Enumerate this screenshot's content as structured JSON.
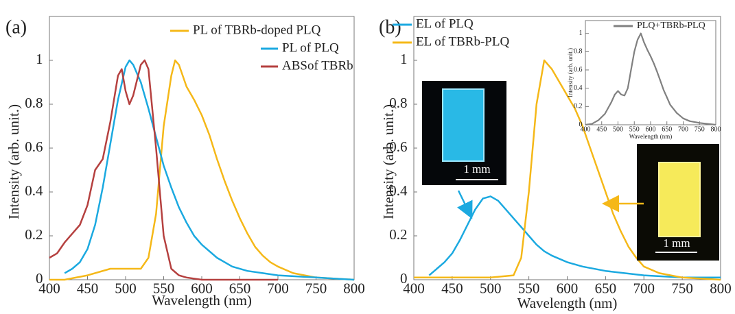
{
  "chart_data": [
    {
      "type": "line",
      "panel_label": "(a)",
      "x_label": "Wavelength (nm)",
      "y_label": "Intensity (arb. unit.)",
      "xlim": [
        400,
        800
      ],
      "xticks": [
        400,
        450,
        500,
        550,
        600,
        650,
        700,
        750,
        800
      ],
      "ylim": [
        0,
        1.2
      ],
      "yticks": [
        0,
        0.2,
        0.4,
        0.6,
        0.8,
        1
      ],
      "series": [
        {
          "name": "PL of TBRb-doped PLQ",
          "color": "#f5b818",
          "x": [
            400,
            420,
            450,
            480,
            500,
            520,
            530,
            540,
            550,
            560,
            565,
            570,
            580,
            590,
            600,
            610,
            620,
            630,
            640,
            650,
            660,
            670,
            680,
            690,
            700,
            720,
            750,
            800
          ],
          "values": [
            0.0,
            0.0,
            0.02,
            0.05,
            0.05,
            0.05,
            0.1,
            0.3,
            0.7,
            0.93,
            1.0,
            0.98,
            0.88,
            0.82,
            0.75,
            0.66,
            0.55,
            0.45,
            0.36,
            0.28,
            0.21,
            0.15,
            0.11,
            0.08,
            0.06,
            0.03,
            0.01,
            0.0
          ]
        },
        {
          "name": "PL of PLQ",
          "color": "#1ba9e0",
          "x": [
            420,
            430,
            440,
            450,
            460,
            470,
            480,
            490,
            500,
            505,
            510,
            520,
            530,
            540,
            550,
            560,
            570,
            580,
            590,
            600,
            620,
            640,
            660,
            680,
            700,
            750,
            800
          ],
          "values": [
            0.03,
            0.05,
            0.08,
            0.14,
            0.25,
            0.42,
            0.62,
            0.82,
            0.97,
            1.0,
            0.98,
            0.9,
            0.78,
            0.65,
            0.52,
            0.42,
            0.33,
            0.26,
            0.2,
            0.16,
            0.1,
            0.06,
            0.04,
            0.03,
            0.02,
            0.01,
            0.0
          ]
        },
        {
          "name": "ABSof TBRb",
          "color": "#b5403f",
          "x": [
            400,
            410,
            420,
            430,
            440,
            450,
            460,
            470,
            480,
            490,
            495,
            500,
            505,
            510,
            520,
            525,
            530,
            540,
            550,
            560,
            570,
            580,
            600,
            650,
            700
          ],
          "values": [
            0.1,
            0.12,
            0.17,
            0.21,
            0.25,
            0.34,
            0.5,
            0.55,
            0.72,
            0.93,
            0.96,
            0.86,
            0.8,
            0.84,
            0.98,
            1.0,
            0.96,
            0.6,
            0.2,
            0.05,
            0.02,
            0.01,
            0.0,
            0.0,
            0.0
          ]
        }
      ]
    },
    {
      "type": "line",
      "panel_label": "(b)",
      "x_label": "Wavelength (nm)",
      "y_label": "Intensity (arb. unit.)",
      "xlim": [
        400,
        800
      ],
      "xticks": [
        400,
        450,
        500,
        550,
        600,
        650,
        700,
        750,
        800
      ],
      "ylim": [
        0,
        1.2
      ],
      "yticks": [
        0,
        0.2,
        0.4,
        0.6,
        0.8,
        1
      ],
      "annotations": [
        "1 mm",
        "1 mm"
      ],
      "series": [
        {
          "name": "EL of PLQ",
          "color": "#1ba9e0",
          "x": [
            420,
            440,
            450,
            460,
            470,
            480,
            490,
            500,
            510,
            520,
            530,
            540,
            550,
            560,
            570,
            580,
            600,
            620,
            650,
            700,
            750,
            800
          ],
          "values": [
            0.02,
            0.08,
            0.12,
            0.18,
            0.25,
            0.32,
            0.37,
            0.38,
            0.36,
            0.32,
            0.28,
            0.24,
            0.2,
            0.16,
            0.13,
            0.11,
            0.08,
            0.06,
            0.04,
            0.02,
            0.01,
            0.01
          ]
        },
        {
          "name": "EL of TBRb-PLQ",
          "color": "#f5b818",
          "x": [
            400,
            500,
            530,
            540,
            550,
            560,
            570,
            580,
            590,
            600,
            610,
            620,
            630,
            640,
            650,
            660,
            670,
            680,
            690,
            700,
            720,
            750,
            800
          ],
          "values": [
            0.01,
            0.01,
            0.02,
            0.1,
            0.4,
            0.8,
            1.0,
            0.96,
            0.9,
            0.84,
            0.78,
            0.7,
            0.6,
            0.5,
            0.4,
            0.3,
            0.22,
            0.15,
            0.1,
            0.06,
            0.03,
            0.01,
            0.0
          ]
        }
      ]
    },
    {
      "type": "line",
      "x_label": "Wavelength (nm)",
      "y_label": "Intensity (arb. unit.)",
      "xlim": [
        400,
        800
      ],
      "xticks": [
        400,
        450,
        500,
        550,
        600,
        650,
        700,
        750,
        800
      ],
      "ylim": [
        0,
        1.14
      ],
      "yticks": [
        0,
        0.2,
        0.4,
        0.6,
        0.8,
        1
      ],
      "series": [
        {
          "name": "PLQ+TBRb-PLQ",
          "color": "#808080",
          "x": [
            400,
            420,
            440,
            460,
            480,
            490,
            500,
            510,
            520,
            530,
            540,
            550,
            560,
            570,
            580,
            590,
            600,
            610,
            620,
            630,
            640,
            650,
            660,
            680,
            700,
            720,
            750,
            800
          ],
          "values": [
            0.0,
            0.01,
            0.05,
            0.12,
            0.25,
            0.33,
            0.37,
            0.33,
            0.32,
            0.4,
            0.6,
            0.8,
            0.93,
            1.0,
            0.9,
            0.82,
            0.75,
            0.67,
            0.58,
            0.48,
            0.38,
            0.3,
            0.22,
            0.13,
            0.07,
            0.04,
            0.02,
            0.0
          ]
        }
      ]
    }
  ]
}
